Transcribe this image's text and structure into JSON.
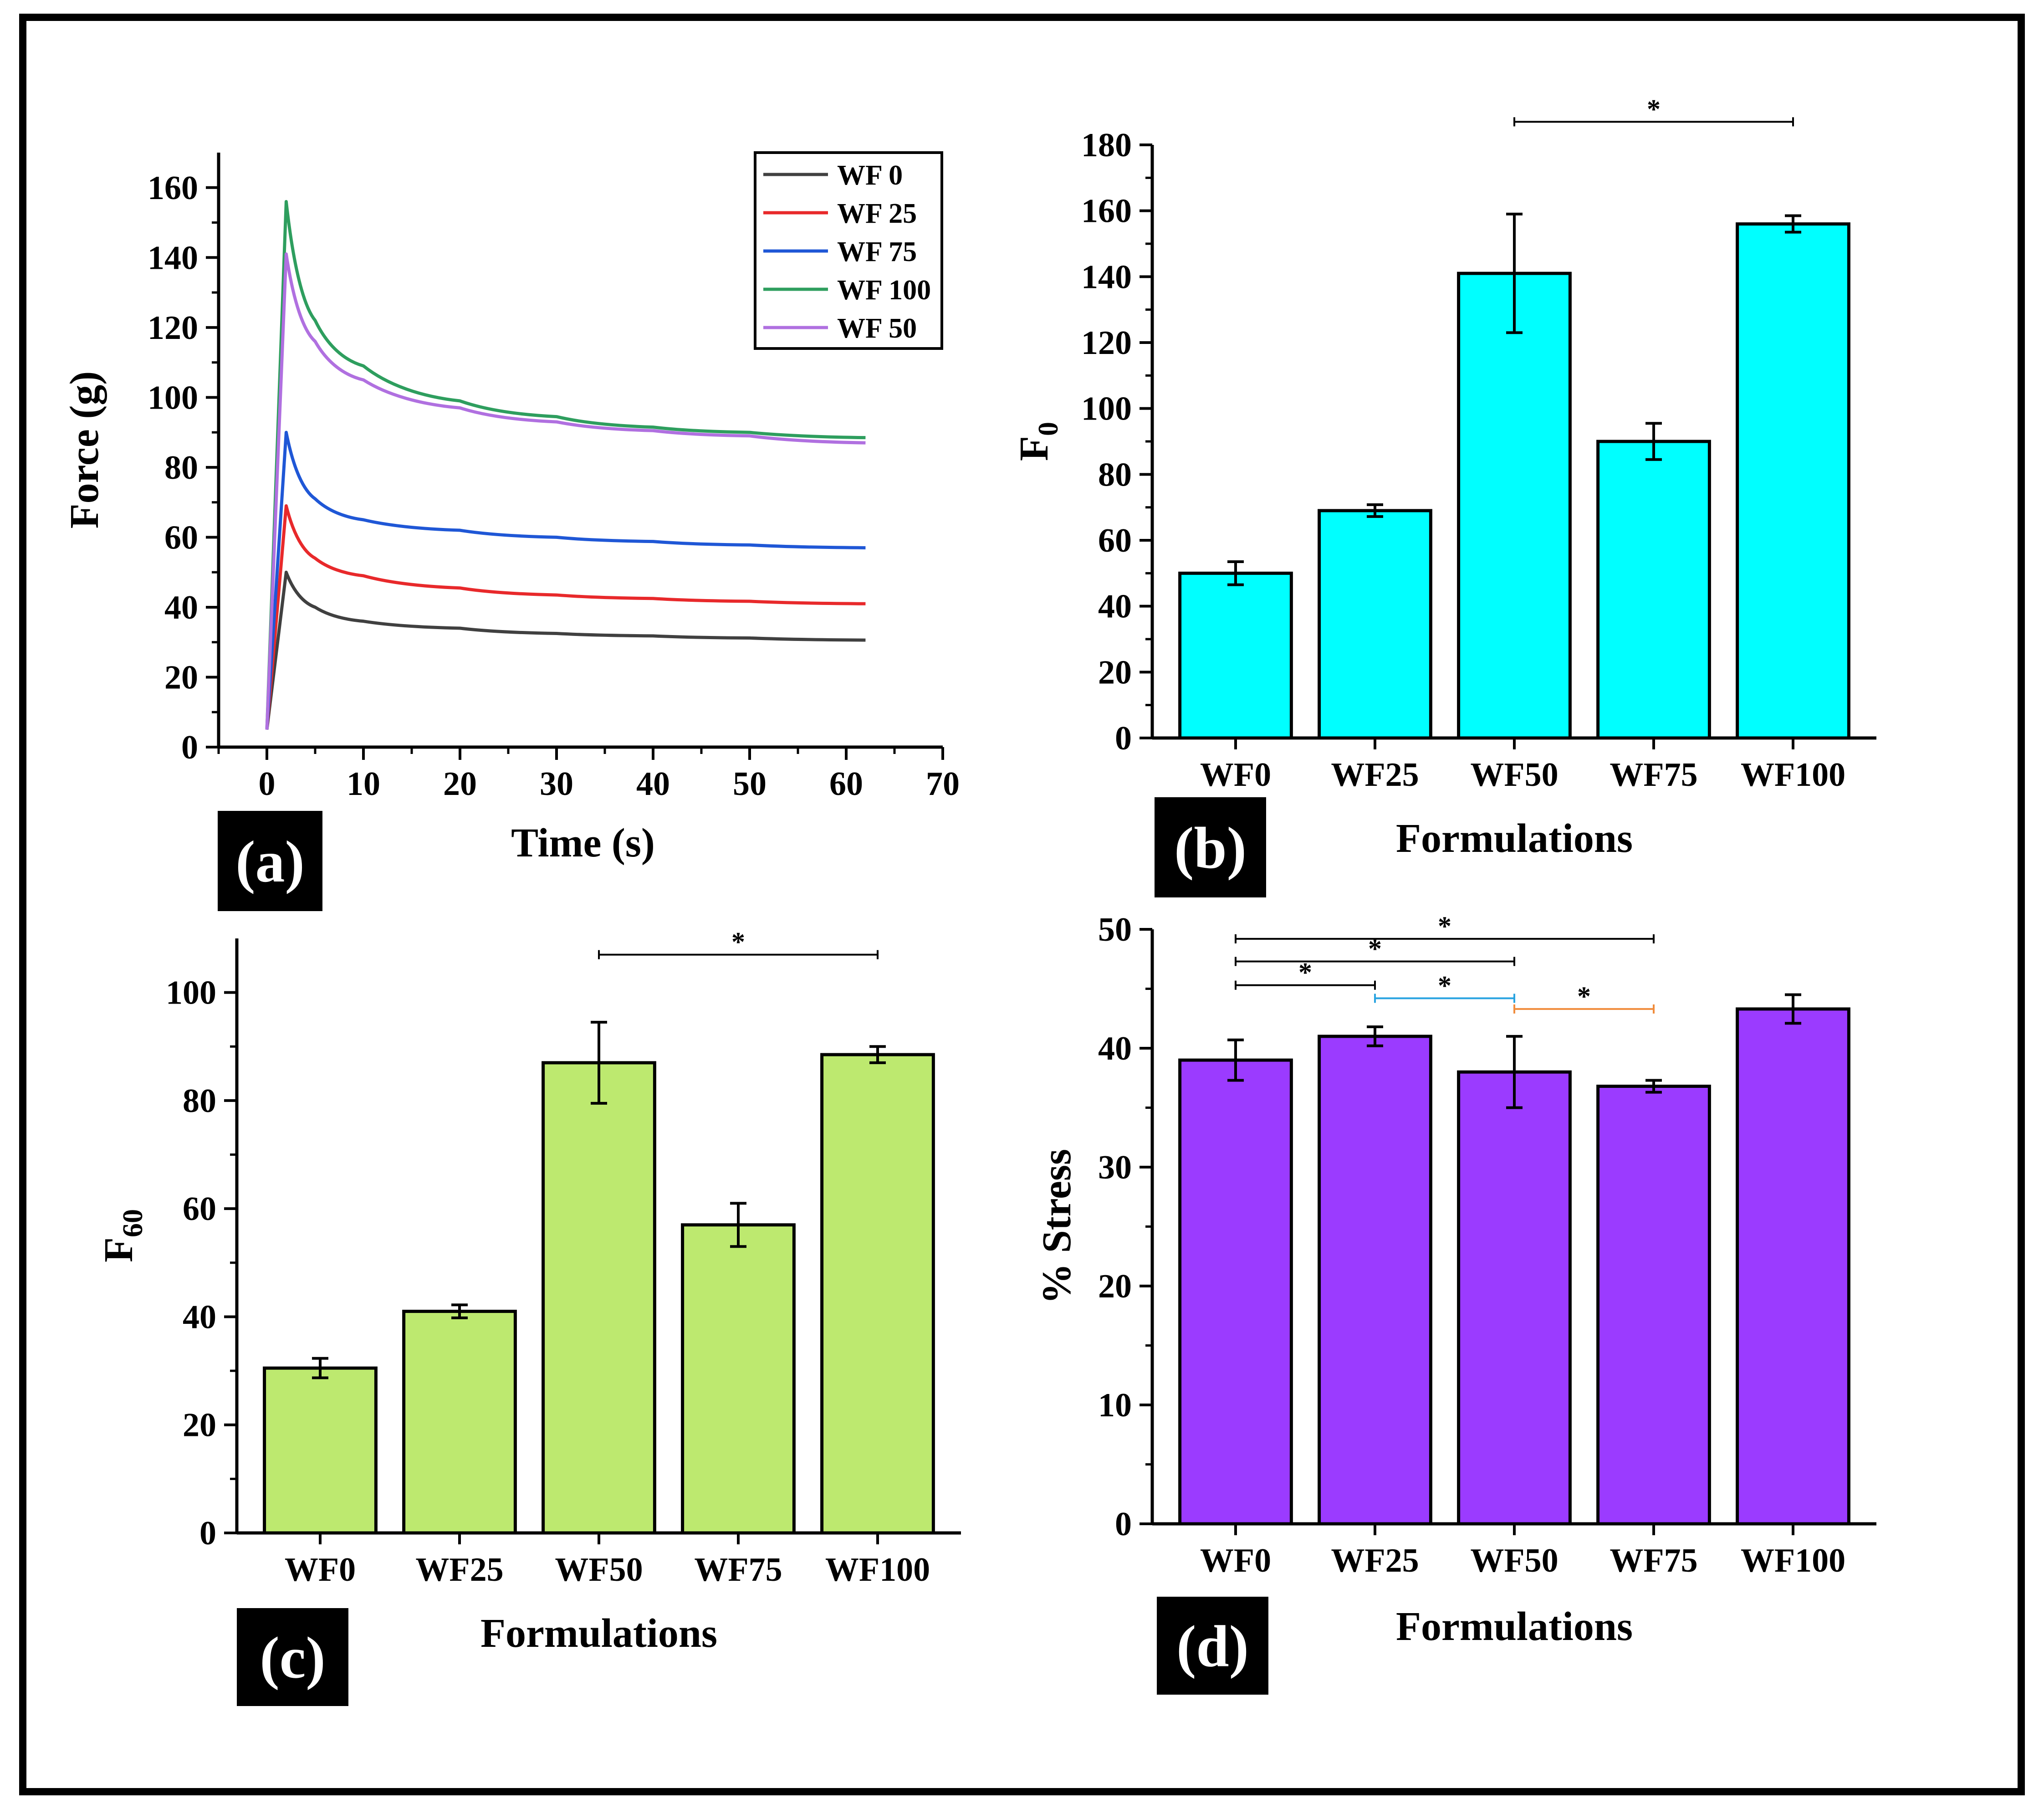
{
  "chart_data": [
    {
      "panel": "(a)",
      "type": "line",
      "xlabel": "Time (s)",
      "ylabel": "Force (g)",
      "xlim": [
        -5,
        70
      ],
      "ylim": [
        0,
        170
      ],
      "xticks": [
        0,
        10,
        20,
        30,
        40,
        50,
        60,
        70
      ],
      "yticks": [
        0,
        20,
        40,
        60,
        80,
        100,
        120,
        140,
        160
      ],
      "legend_position": "top-right",
      "x": [
        0,
        2,
        5,
        10,
        20,
        30,
        40,
        50,
        62
      ],
      "series": [
        {
          "name": "WF 0",
          "color": "#404040",
          "values": [
            5,
            50,
            40,
            36,
            34,
            32.5,
            31.8,
            31.2,
            30.6
          ]
        },
        {
          "name": "WF 25",
          "color": "#e8292b",
          "values": [
            5,
            69,
            54,
            49,
            45.5,
            43.5,
            42.5,
            41.7,
            41
          ]
        },
        {
          "name": "WF 75",
          "color": "#1f57d6",
          "values": [
            5,
            90,
            71,
            65,
            62,
            60,
            58.8,
            57.8,
            57
          ]
        },
        {
          "name": "WF 100",
          "color": "#2e9e5e",
          "values": [
            5,
            156,
            122,
            109,
            99,
            94.5,
            91.5,
            90,
            88.5
          ]
        },
        {
          "name": "WF 50",
          "color": "#b070e0",
          "values": [
            5,
            141,
            116,
            105,
            97,
            93,
            90.5,
            89,
            87
          ]
        }
      ]
    },
    {
      "panel": "(b)",
      "type": "bar",
      "xlabel": "Formulations",
      "ylabel": "F",
      "ylabel_sub": "0",
      "ylim": [
        0,
        180
      ],
      "yticks": [
        0,
        20,
        40,
        60,
        80,
        100,
        120,
        140,
        160,
        180
      ],
      "bar_color": "#00ffff",
      "categories": [
        "WF0",
        "WF25",
        "WF50",
        "WF75",
        "WF100"
      ],
      "values": [
        50,
        69,
        141,
        90,
        156
      ],
      "errors": [
        3.5,
        1.8,
        18,
        5.5,
        2.5
      ],
      "significance": [
        {
          "from": 2,
          "to": 4,
          "level": 187,
          "label": "*",
          "color": "#000000"
        }
      ]
    },
    {
      "panel": "(c)",
      "type": "bar",
      "xlabel": "Formulations",
      "ylabel": "F",
      "ylabel_sub": "60",
      "ylim": [
        0,
        110
      ],
      "yticks": [
        0,
        20,
        40,
        60,
        80,
        100
      ],
      "bar_color": "#bde96f",
      "categories": [
        "WF0",
        "WF25",
        "WF50",
        "WF75",
        "WF100"
      ],
      "values": [
        30.5,
        41,
        87,
        57,
        88.5
      ],
      "errors": [
        1.8,
        1.2,
        7.5,
        4,
        1.5
      ],
      "significance": [
        {
          "from": 2,
          "to": 4,
          "level": 107,
          "label": "*",
          "color": "#000000"
        }
      ]
    },
    {
      "panel": "(d)",
      "type": "bar",
      "xlabel": "Formulations",
      "ylabel": "% Stress",
      "ylim": [
        0,
        50
      ],
      "yticks": [
        0,
        10,
        20,
        30,
        40,
        50
      ],
      "bar_color": "#9b3bff",
      "categories": [
        "WF0",
        "WF25",
        "WF50",
        "WF75",
        "WF100"
      ],
      "values": [
        39,
        41,
        38,
        36.8,
        43.3
      ],
      "errors": [
        1.7,
        0.8,
        3,
        0.5,
        1.2
      ],
      "significance": [
        {
          "from": 0,
          "to": 3,
          "level": 49.2,
          "label": "*",
          "color": "#000000"
        },
        {
          "from": 0,
          "to": 2,
          "level": 47.3,
          "label": "*",
          "color": "#000000"
        },
        {
          "from": 0,
          "to": 1,
          "level": 45.3,
          "label": "*",
          "color": "#000000"
        },
        {
          "from": 1,
          "to": 2,
          "level": 44.2,
          "label": "*",
          "color": "#29a3e0"
        },
        {
          "from": 2,
          "to": 3,
          "level": 43.3,
          "label": "*",
          "color": "#f08c3c"
        }
      ]
    }
  ]
}
